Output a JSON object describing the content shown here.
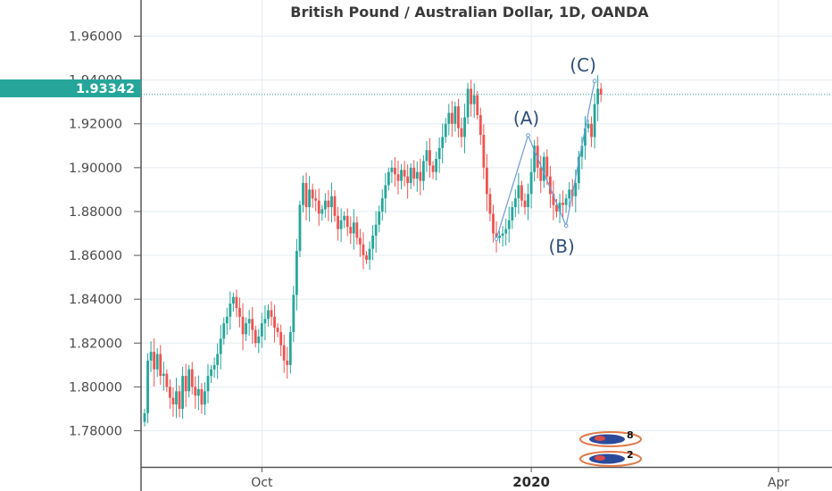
{
  "chart_data": {
    "type": "ohlc",
    "title": "British Pound / Australian Dollar, 1D, OANDA",
    "yticks": [
      "1.96000",
      "1.94000",
      "1.92000",
      "1.90000",
      "1.88000",
      "1.86000",
      "1.84000",
      "1.82000",
      "1.80000",
      "1.78000"
    ],
    "ytick_values": [
      1.96,
      1.94,
      1.92,
      1.9,
      1.88,
      1.86,
      1.84,
      1.82,
      1.8,
      1.78
    ],
    "ylim": [
      1.7635,
      1.9765
    ],
    "xticks": [
      {
        "label": "Oct",
        "index": 37,
        "bold": false
      },
      {
        "label": "2020",
        "index": 122,
        "bold": true
      },
      {
        "label": "Apr",
        "index": 200,
        "bold": false
      }
    ],
    "last_price": "1.93342",
    "last_price_value": 1.93342,
    "colors": {
      "up": "#26a69a",
      "down": "#ef5350",
      "price_tag": "#26a69a",
      "wave": "#6d9ad6",
      "wave_text": "#2d4e7a"
    },
    "wave_labels": [
      {
        "text": "(A)",
        "index": 121,
        "price": 1.9148
      },
      {
        "text": "(B)",
        "index": 133,
        "price": 1.8735
      },
      {
        "text": "(C)",
        "index": 142,
        "price": 1.9395
      }
    ],
    "closes": [
      1.788,
      1.812,
      1.816,
      1.808,
      1.815,
      1.805,
      1.806,
      1.8,
      1.795,
      1.792,
      1.798,
      1.79,
      1.805,
      1.798,
      1.808,
      1.8,
      1.796,
      1.799,
      1.792,
      1.798,
      1.805,
      1.808,
      1.81,
      1.815,
      1.822,
      1.829,
      1.832,
      1.838,
      1.841,
      1.836,
      1.832,
      1.824,
      1.829,
      1.831,
      1.826,
      1.82,
      1.823,
      1.829,
      1.831,
      1.835,
      1.832,
      1.827,
      1.825,
      1.819,
      1.812,
      1.81,
      1.825,
      1.842,
      1.862,
      1.883,
      1.893,
      1.882,
      1.89,
      1.886,
      1.885,
      1.879,
      1.881,
      1.885,
      1.882,
      1.887,
      1.878,
      1.872,
      1.876,
      1.878,
      1.873,
      1.87,
      1.875,
      1.868,
      1.865,
      1.86,
      1.858,
      1.863,
      1.869,
      1.874,
      1.88,
      1.886,
      1.892,
      1.898,
      1.9,
      1.897,
      1.894,
      1.899,
      1.896,
      1.893,
      1.9,
      1.895,
      1.898,
      1.894,
      1.903,
      1.908,
      1.901,
      1.898,
      1.904,
      1.909,
      1.914,
      1.92,
      1.925,
      1.92,
      1.928,
      1.918,
      1.914,
      1.923,
      1.936,
      1.929,
      1.933,
      1.924,
      1.915,
      1.9,
      1.888,
      1.879,
      1.87,
      1.868,
      1.869,
      1.87,
      1.872,
      1.876,
      1.882,
      1.886,
      1.892,
      1.885,
      1.882,
      1.888,
      1.898,
      1.91,
      1.9,
      1.894,
      1.905,
      1.896,
      1.888,
      1.883,
      1.88,
      1.884,
      1.883,
      1.886,
      1.89,
      1.887,
      1.893,
      1.905,
      1.91,
      1.918,
      1.92,
      1.914,
      1.929,
      1.936,
      1.9334
    ]
  },
  "badges": [
    {
      "name": "badge-top",
      "count": "8"
    },
    {
      "name": "badge-bottom",
      "count": "2"
    }
  ]
}
